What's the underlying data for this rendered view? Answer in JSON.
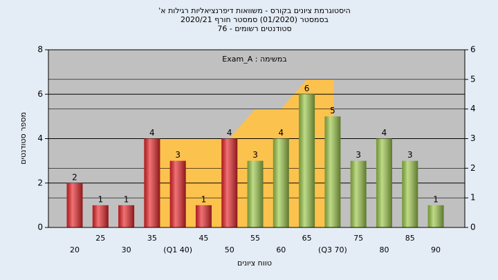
{
  "chart_data": {
    "type": "bar",
    "title": "היסטוגרמת ציונים בקורס - משוואות דיפרנציאליות רגילות א'",
    "subtitle": "בסמסטר (01/2020) סמסטר חורף 2020/21",
    "subtitle2": "סטודנטים רשומים - 76",
    "annotation": "במשימה : Exam_A",
    "x_label": "טווח ציונים",
    "y_label": "מספר סטודנטים",
    "categories": [
      "20",
      "25",
      "30",
      "35",
      "(Q1 40)",
      "45",
      "50",
      "55",
      "60",
      "65",
      "(Q3 70)",
      "75",
      "80",
      "85",
      "90"
    ],
    "values": [
      2,
      1,
      1,
      4,
      3,
      1,
      4,
      3,
      4,
      6,
      5,
      3,
      4,
      3,
      1
    ],
    "colors": [
      "#e8262a",
      "#e8262a",
      "#e8262a",
      "#e8262a",
      "#e8262a",
      "#e8262a",
      "#e8262a",
      "#9cc84a",
      "#9cc84a",
      "#9cc84a",
      "#9cc84a",
      "#9cc84a",
      "#9cc84a",
      "#9cc84a",
      "#9cc84a"
    ],
    "area": {
      "axis": "y2",
      "color": "#fcc24e",
      "values": [
        null,
        null,
        null,
        null,
        3,
        3,
        3,
        4,
        4,
        5,
        5,
        null,
        null,
        null,
        null
      ]
    },
    "ylim": [
      0,
      8
    ],
    "yticks": [
      0,
      2,
      4,
      6,
      8
    ],
    "y2lim": [
      0,
      6
    ],
    "y2ticks": [
      0,
      1,
      2,
      3,
      4,
      5,
      6
    ],
    "grid": true
  }
}
